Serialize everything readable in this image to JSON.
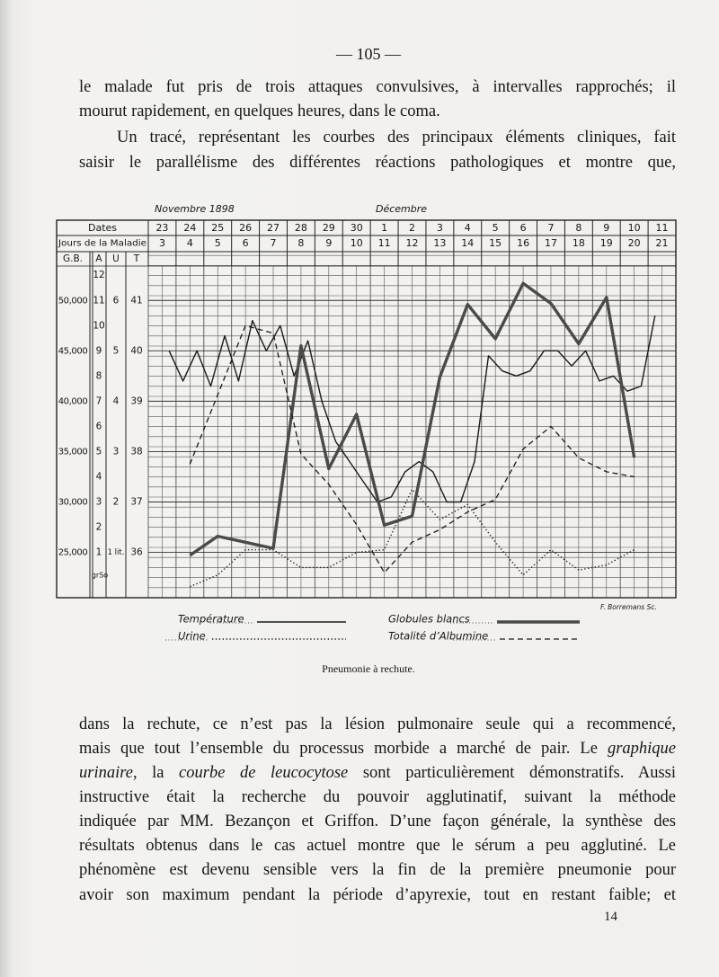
{
  "page_number": "— 105 —",
  "paragraphs_before": [
    [
      [
        "le malade fut pris de trois attaques convulsives, à intervalles rapprochés; il"
      ],
      [
        "mourut rapidement, en quelques heures, dans le coma."
      ]
    ],
    [
      [
        "Un tracé, représentant les courbes des principaux éléments cliniques, fait"
      ],
      [
        "saisir le parallélisme des différentes réactions pathologiques et montre que,"
      ]
    ]
  ],
  "chart_data": {
    "type": "line",
    "months": [
      "Novembre 1898",
      "Décembre"
    ],
    "row_labels": [
      "Dates",
      "Jours de la Maladie"
    ],
    "categories": [
      "23",
      "24",
      "25",
      "26",
      "27",
      "28",
      "29",
      "30",
      "1",
      "2",
      "3",
      "4",
      "5",
      "6",
      "7",
      "8",
      "9",
      "10",
      "11"
    ],
    "xlim": [
      2.5,
      21.5
    ],
    "xticks": [
      3,
      4,
      5,
      6,
      7,
      8,
      9,
      10,
      11,
      12,
      13,
      14,
      15,
      16,
      17,
      18,
      19,
      20,
      21
    ],
    "axes": [
      {
        "label": "G.B.",
        "ylim": [
          20500,
          54750
        ],
        "yticks": [
          {
            "value": 25000,
            "label": "25,000"
          },
          {
            "value": 30000,
            "label": "30,000"
          },
          {
            "value": 35000,
            "label": "35,000"
          },
          {
            "value": 40000,
            "label": "40,000"
          },
          {
            "value": 45000,
            "label": "45,000"
          },
          {
            "value": 50000,
            "label": "50,000"
          }
        ]
      },
      {
        "label": "A",
        "ylim": [
          -0.8,
          12.9
        ],
        "yticks": [
          1,
          2,
          3,
          4,
          5,
          6,
          7,
          8,
          9,
          10,
          11,
          12
        ]
      },
      {
        "label": "U",
        "ylim": [
          0.1,
          6.95
        ],
        "yticks": [
          {
            "value": 1,
            "label": "1 lit."
          },
          2,
          3,
          4,
          5,
          6
        ]
      },
      {
        "label": "T",
        "ylim": [
          35.1,
          41.95
        ],
        "yticks": [
          36,
          37,
          38,
          39,
          40,
          41
        ]
      }
    ],
    "annotations": [
      "grSo",
      "F. Borremans Sc."
    ],
    "series": [
      {
        "name": "Température",
        "axis": 3,
        "style": "solid",
        "color": "#1a1a1a",
        "x": [
          3.25,
          3.75,
          4.25,
          4.75,
          5.25,
          5.75,
          6.25,
          6.75,
          7.25,
          7.75,
          8.25,
          8.75,
          9.25,
          9.75,
          10.25,
          10.75,
          11.25,
          11.75,
          12.25,
          12.75,
          13.25,
          13.75,
          14.25,
          14.75,
          15.25,
          15.75,
          16.25,
          16.75,
          17.25,
          17.75,
          18.25,
          18.75,
          19.25,
          19.75,
          20.25,
          20.75
        ],
        "values": [
          40.0,
          39.4,
          40.0,
          39.3,
          40.3,
          39.4,
          40.6,
          40.0,
          40.5,
          39.5,
          40.2,
          39.0,
          38.2,
          37.8,
          37.4,
          37.0,
          37.1,
          37.6,
          37.8,
          37.6,
          37.0,
          37.0,
          37.8,
          39.9,
          39.6,
          39.5,
          39.6,
          40.0,
          40.0,
          39.7,
          40.0,
          39.4,
          39.5,
          39.2,
          39.3,
          40.7
        ]
      },
      {
        "name": "Urine",
        "axis": 2,
        "style": "dotted",
        "color": "#1a1a1a",
        "x": [
          4,
          5,
          6,
          7,
          8,
          9,
          10,
          11,
          12,
          13,
          14,
          15,
          16,
          17,
          18,
          19,
          20
        ],
        "values": [
          0.32,
          0.55,
          1.05,
          1.05,
          0.7,
          0.7,
          1.0,
          1.05,
          2.25,
          1.65,
          1.95,
          1.2,
          0.55,
          1.05,
          0.65,
          0.75,
          1.05
        ]
      },
      {
        "name": "Globules blancs",
        "axis": 0,
        "style": "thick",
        "color": "#4a4a4a",
        "x": [
          4,
          5,
          6,
          7,
          8,
          9,
          10,
          11,
          12,
          13,
          14,
          15,
          16,
          17,
          18,
          19,
          20
        ],
        "values": [
          24700,
          26600,
          26000,
          25400,
          45500,
          33300,
          38700,
          27700,
          28600,
          42400,
          49600,
          46200,
          51700,
          49700,
          45700,
          50300,
          34400
        ]
      },
      {
        "name": "Totalité d’Albumine",
        "axis": 1,
        "style": "dashed",
        "color": "#1a1a1a",
        "x": [
          4,
          5,
          6,
          7,
          8,
          9,
          10,
          11,
          12,
          13,
          14,
          15,
          16,
          17,
          18,
          19,
          20
        ],
        "values": [
          4.5,
          7.25,
          10.0,
          9.7,
          4.9,
          3.7,
          2.1,
          0.2,
          1.4,
          1.9,
          2.6,
          3.1,
          5.1,
          6.0,
          4.75,
          4.2,
          4.0
        ]
      }
    ]
  },
  "caption": "Pneumonie à rechute.",
  "paragraphs_after": [
    [
      [
        "dans la rechute, ce n’est pas la lésion pulmonaire seule qui a recommencé,"
      ],
      [
        "mais que tout l’ensemble du processus morbide a marché de pair. Le ",
        {
          "em": "graphique"
        }
      ],
      [
        {
          "em": "urinaire"
        },
        ", la ",
        {
          "em": "courbe de leucocytose"
        },
        " sont particulièrement démonstratifs. Aussi"
      ],
      [
        "instructive était la recherche du pouvoir agglutinatif, suivant la méthode"
      ],
      [
        "indiquée par MM. Bezançon et Griffon. D’une façon générale, la synthèse des"
      ],
      [
        "résultats obtenus dans le cas actuel montre que le sérum a peu agglutiné. Le"
      ],
      [
        "phénomène est devenu sensible vers la fin de la première pneumonie pour"
      ],
      [
        "avoir son maximum pendant la période d’apyrexie, tout en restant faible; et"
      ]
    ]
  ],
  "signature_mark": "14"
}
